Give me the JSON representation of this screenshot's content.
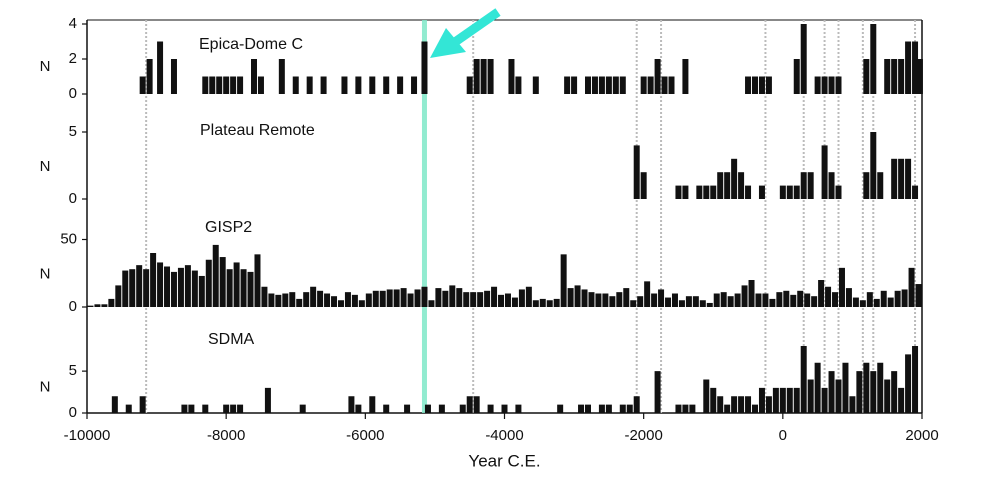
{
  "chart_data": [
    {
      "type": "bar",
      "title": "Epica-Dome C",
      "ylabel": "N",
      "color": "#111111",
      "x": [
        -9200,
        -9100,
        -8950,
        -8750,
        -8300,
        -8200,
        -8100,
        -8000,
        -7900,
        -7800,
        -7600,
        -7500,
        -7200,
        -7000,
        -6800,
        -6600,
        -6300,
        -6100,
        -5900,
        -5700,
        -5500,
        -5300,
        -5150,
        -4500,
        -4400,
        -4300,
        -4200,
        -3900,
        -3800,
        -3550,
        -3100,
        -3000,
        -2800,
        -2700,
        -2600,
        -2500,
        -2400,
        -2300,
        -2000,
        -1900,
        -1800,
        -1700,
        -1600,
        -1400,
        -500,
        -400,
        -300,
        -200,
        200,
        300,
        500,
        600,
        700,
        800,
        1200,
        1300,
        1500,
        1600,
        1700,
        1800,
        1900,
        1970
      ],
      "values": [
        1,
        2,
        3,
        2,
        1,
        1,
        1,
        1,
        1,
        1,
        2,
        1,
        2,
        1,
        1,
        1,
        1,
        1,
        1,
        1,
        1,
        1,
        3,
        1,
        2,
        2,
        2,
        2,
        1,
        1,
        1,
        1,
        1,
        1,
        1,
        1,
        1,
        1,
        1,
        1,
        2,
        1,
        1,
        2,
        1,
        1,
        1,
        1,
        2,
        4,
        1,
        1,
        1,
        1,
        2,
        4,
        2,
        2,
        2,
        3,
        3,
        2
      ],
      "ylim": [
        0,
        4
      ],
      "yticks": [
        0,
        2,
        4
      ],
      "xlim": [
        -10000,
        2000
      ],
      "vlines": [
        -9150,
        -4450,
        -2100,
        -1750,
        -250,
        300,
        600,
        800,
        1150,
        1300,
        1900
      ],
      "vline_color": "#bbbbbb",
      "highlight": {
        "x": -5150,
        "color": "#7fe8c8"
      }
    },
    {
      "type": "bar",
      "title": "Plateau Remote",
      "ylabel": "N",
      "color": "#111111",
      "x": [
        -2100,
        -2000,
        -1500,
        -1400,
        -1200,
        -1100,
        -1000,
        -900,
        -800,
        -700,
        -600,
        -500,
        -300,
        0,
        100,
        200,
        300,
        400,
        600,
        700,
        800,
        1200,
        1300,
        1400,
        1600,
        1700,
        1800,
        1900
      ],
      "values": [
        4,
        2,
        1,
        1,
        1,
        1,
        1,
        2,
        2,
        3,
        2,
        1,
        1,
        1,
        1,
        1,
        2,
        2,
        4,
        2,
        1,
        2,
        5,
        2,
        3,
        3,
        3,
        1
      ],
      "ylim": [
        0,
        6
      ],
      "yticks": [
        0,
        5
      ],
      "xlim": [
        -10000,
        2000
      ]
    },
    {
      "type": "bar",
      "title": "GISP2",
      "ylabel": "N",
      "color": "#111111",
      "x": [
        -9950,
        -9850,
        -9750,
        -9650,
        -9550,
        -9450,
        -9350,
        -9250,
        -9150,
        -9050,
        -8950,
        -8850,
        -8750,
        -8650,
        -8550,
        -8450,
        -8350,
        -8250,
        -8150,
        -8050,
        -7950,
        -7850,
        -7750,
        -7650,
        -7550,
        -7450,
        -7350,
        -7250,
        -7150,
        -7050,
        -6950,
        -6850,
        -6750,
        -6650,
        -6550,
        -6450,
        -6350,
        -6250,
        -6150,
        -6050,
        -5950,
        -5850,
        -5750,
        -5650,
        -5550,
        -5450,
        -5350,
        -5250,
        -5150,
        -5050,
        -4950,
        -4850,
        -4750,
        -4650,
        -4550,
        -4450,
        -4350,
        -4250,
        -4150,
        -4050,
        -3950,
        -3850,
        -3750,
        -3650,
        -3550,
        -3450,
        -3350,
        -3250,
        -3150,
        -3050,
        -2950,
        -2850,
        -2750,
        -2650,
        -2550,
        -2450,
        -2350,
        -2250,
        -2150,
        -2050,
        -1950,
        -1850,
        -1750,
        -1650,
        -1550,
        -1450,
        -1350,
        -1250,
        -1150,
        -1050,
        -950,
        -850,
        -750,
        -650,
        -550,
        -450,
        -350,
        -250,
        -150,
        -50,
        50,
        150,
        250,
        350,
        450,
        550,
        650,
        750,
        850,
        950,
        1050,
        1150,
        1250,
        1350,
        1450,
        1550,
        1650,
        1750,
        1850,
        1950
      ],
      "values": [
        1,
        2,
        2,
        6,
        16,
        27,
        28,
        31,
        28,
        40,
        33,
        30,
        26,
        29,
        31,
        27,
        23,
        35,
        46,
        37,
        28,
        33,
        28,
        26,
        39,
        15,
        10,
        9,
        10,
        11,
        6,
        11,
        15,
        12,
        10,
        8,
        5,
        11,
        9,
        5,
        10,
        12,
        12,
        13,
        13,
        14,
        10,
        13,
        15,
        5,
        14,
        12,
        16,
        14,
        11,
        11,
        11,
        12,
        15,
        9,
        10,
        7,
        13,
        15,
        5,
        6,
        5,
        6,
        39,
        14,
        16,
        13,
        11,
        10,
        10,
        8,
        11,
        14,
        5,
        8,
        19,
        10,
        13,
        7,
        10,
        5,
        8,
        8,
        5,
        3,
        10,
        11,
        8,
        10,
        16,
        20,
        10,
        10,
        6,
        11,
        12,
        9,
        12,
        10,
        8,
        20,
        15,
        11,
        29,
        14,
        7,
        5,
        11,
        6,
        12,
        7,
        12,
        13,
        29,
        17
      ],
      "ylim": [
        0,
        60
      ],
      "yticks": [
        0,
        50
      ],
      "xlim": [
        -10000,
        2000
      ]
    },
    {
      "type": "bar",
      "title": "SDMA",
      "ylabel": "N",
      "color": "#111111",
      "x": [
        -9600,
        -9400,
        -9200,
        -8600,
        -8500,
        -8300,
        -8000,
        -7900,
        -7800,
        -7400,
        -6900,
        -6200,
        -6100,
        -5900,
        -5700,
        -5400,
        -5100,
        -4900,
        -4600,
        -4500,
        -4400,
        -4200,
        -4000,
        -3800,
        -3200,
        -2900,
        -2800,
        -2600,
        -2500,
        -2300,
        -2200,
        -2100,
        -1800,
        -1500,
        -1400,
        -1300,
        -1100,
        -1000,
        -900,
        -800,
        -700,
        -600,
        -500,
        -400,
        -300,
        -200,
        -100,
        0,
        100,
        200,
        300,
        400,
        500,
        600,
        700,
        800,
        900,
        1000,
        1100,
        1200,
        1300,
        1400,
        1500,
        1600,
        1700,
        1800,
        1900
      ],
      "values": [
        2,
        1,
        2,
        1,
        1,
        1,
        1,
        1,
        1,
        3,
        1,
        2,
        1,
        2,
        1,
        1,
        1,
        1,
        1,
        2,
        2,
        1,
        1,
        1,
        1,
        1,
        1,
        1,
        1,
        1,
        1,
        2,
        5,
        1,
        1,
        1,
        4,
        3,
        2,
        1,
        2,
        2,
        2,
        1,
        3,
        2,
        3,
        3,
        3,
        3,
        8,
        4,
        6,
        3,
        5,
        4,
        6,
        2,
        5,
        6,
        5,
        6,
        4,
        5,
        3,
        7,
        8
      ],
      "ylim": [
        0,
        8
      ],
      "yticks": [
        0,
        5
      ],
      "xlim": [
        -10000,
        2000
      ],
      "xticks": [
        -10000,
        -8000,
        -6000,
        -4000,
        -2000,
        0,
        2000
      ],
      "xlabel": "Year C.E."
    }
  ]
}
